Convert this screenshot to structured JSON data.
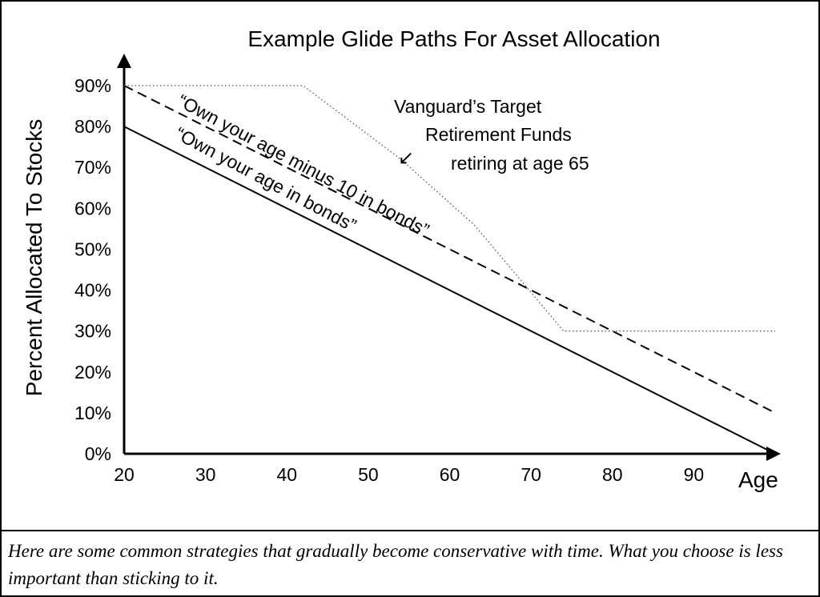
{
  "chart_data": {
    "type": "line",
    "title": "Example Glide Paths For Asset Allocation",
    "xlabel": "Age",
    "ylabel": "Percent Allocated To Stocks",
    "xlim": [
      20,
      100
    ],
    "ylim": [
      0,
      90
    ],
    "x_ticks": [
      "20",
      "30",
      "40",
      "50",
      "60",
      "70",
      "80",
      "90"
    ],
    "y_ticks": [
      "0%",
      "10%",
      "20%",
      "30%",
      "40%",
      "50%",
      "60%",
      "70%",
      "80%",
      "90%"
    ],
    "grid": false,
    "series": [
      {
        "name": "“Own your age in bonds”",
        "style": "solid",
        "x": [
          20,
          100
        ],
        "y": [
          80,
          0
        ]
      },
      {
        "name": "“Own your age minus 10 in bonds”",
        "style": "dashed",
        "x": [
          20,
          100
        ],
        "y": [
          90,
          10
        ]
      },
      {
        "name": "Vanguard’s Target Retirement Funds retiring at age 65",
        "style": "dotted",
        "x": [
          20,
          42,
          54,
          63,
          74,
          100
        ],
        "y": [
          90,
          90,
          72,
          56,
          30,
          30
        ]
      }
    ],
    "annotations": {
      "vanguard_lines": [
        "Vanguard’s Target",
        "Retirement Funds",
        "retiring at age 65"
      ],
      "arrow": "↙"
    }
  },
  "caption": "Here are some common strategies that gradually become conservative with time. What you choose is less important than sticking to it."
}
